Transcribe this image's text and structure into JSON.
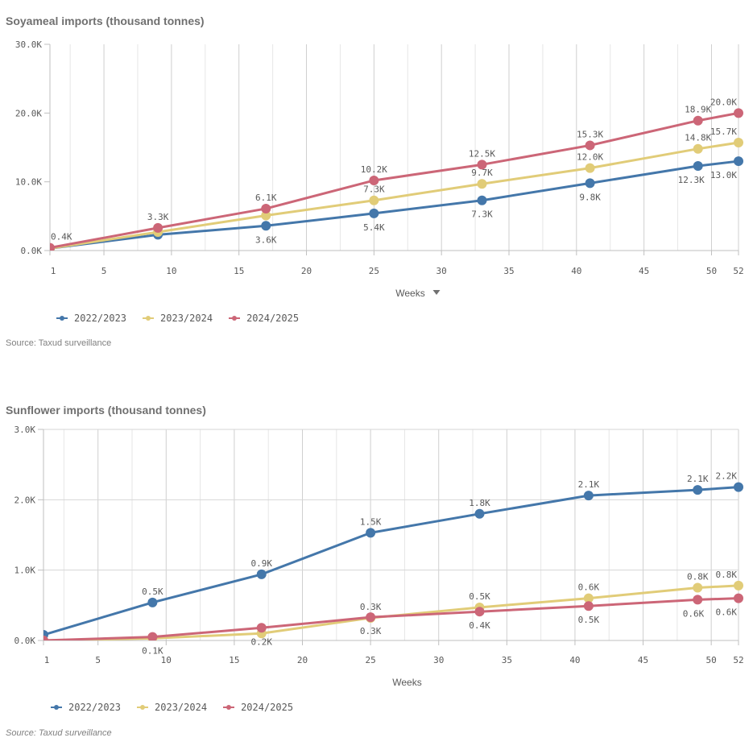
{
  "colors": {
    "series_2022_2023": "#4477aa",
    "series_2023_2024": "#e1cc78",
    "series_2024_2025": "#cc6677",
    "grid": "#d9d9d9",
    "axis": "#bfbfbf"
  },
  "chart_data": [
    {
      "type": "line",
      "title": "Soyameal imports (thousand tonnes)",
      "xlabel": "Weeks",
      "xlabel_has_dropdown": true,
      "ylabel": "",
      "x": [
        1,
        9,
        17,
        25,
        33,
        41,
        49,
        52
      ],
      "xlim": [
        1,
        52
      ],
      "x_ticks": [
        "1",
        "5",
        "10",
        "15",
        "20",
        "25",
        "30",
        "35",
        "40",
        "45",
        "50",
        "52"
      ],
      "x_tick_values": [
        1,
        5,
        10,
        15,
        20,
        25,
        30,
        35,
        40,
        45,
        50,
        52
      ],
      "ylim": [
        0,
        30000
      ],
      "y_ticks": [
        "0.0K",
        "10.0K",
        "20.0K",
        "30.0K"
      ],
      "y_tick_values": [
        0,
        10000,
        20000,
        30000
      ],
      "grid": "vertical",
      "legend_position": "bottom-left",
      "series": [
        {
          "name": "2022/2023",
          "values": [
            300,
            2300,
            3600,
            5400,
            7300,
            9800,
            12300,
            13000
          ],
          "labels": [
            "",
            "",
            "3.6K",
            "5.4K",
            "7.3K",
            "9.8K",
            "12.3K",
            "13.0K"
          ],
          "label_pos": "below"
        },
        {
          "name": "2023/2024",
          "values": [
            300,
            2700,
            5100,
            7300,
            9700,
            12000,
            14800,
            15700
          ],
          "labels": [
            "",
            "",
            "",
            "7.3K",
            "9.7K",
            "12.0K",
            "14.8K",
            "15.7K"
          ],
          "label_pos": "above"
        },
        {
          "name": "2024/2025",
          "values": [
            400,
            3300,
            6100,
            10200,
            12500,
            15300,
            18900,
            20000
          ],
          "labels": [
            "0.4K",
            "3.3K",
            "6.1K",
            "10.2K",
            "12.5K",
            "15.3K",
            "18.9K",
            "20.0K"
          ],
          "label_pos": "above"
        }
      ],
      "source": "Source: Taxud surveillance"
    },
    {
      "type": "line",
      "title": "Sunflower imports (thousand tonnes)",
      "xlabel": "Weeks",
      "xlabel_has_dropdown": false,
      "ylabel": "",
      "x": [
        1,
        9,
        17,
        25,
        33,
        41,
        49,
        52
      ],
      "xlim": [
        1,
        52
      ],
      "x_ticks": [
        "1",
        "5",
        "10",
        "15",
        "20",
        "25",
        "30",
        "35",
        "40",
        "45",
        "50",
        "52"
      ],
      "x_tick_values": [
        1,
        5,
        10,
        15,
        20,
        25,
        30,
        35,
        40,
        45,
        50,
        52
      ],
      "ylim": [
        0,
        3000
      ],
      "y_ticks": [
        "0.0K",
        "1.0K",
        "2.0K",
        "3.0K"
      ],
      "y_tick_values": [
        0,
        1000,
        2000,
        3000
      ],
      "grid": "both",
      "legend_position": "bottom-left",
      "series": [
        {
          "name": "2022/2023",
          "values": [
            80,
            540,
            940,
            1530,
            1800,
            2060,
            2140,
            2180
          ],
          "labels": [
            "",
            "0.5K",
            "0.9K",
            "1.5K",
            "1.8K",
            "2.1K",
            "2.1K",
            "2.2K"
          ],
          "label_pos": "above"
        },
        {
          "name": "2023/2024",
          "values": [
            0,
            30,
            100,
            320,
            470,
            600,
            750,
            780
          ],
          "labels": [
            "",
            "",
            "",
            "0.3K",
            "0.5K",
            "0.6K",
            "0.8K",
            "0.8K"
          ],
          "label_pos": "above"
        },
        {
          "name": "2024/2025",
          "values": [
            0,
            50,
            180,
            330,
            410,
            490,
            580,
            600
          ],
          "labels": [
            "",
            "0.1K",
            "0.2K",
            "0.3K",
            "0.4K",
            "0.5K",
            "0.6K",
            "0.6K"
          ],
          "label_pos": "below"
        }
      ],
      "source": "Source: Taxud surveillance"
    }
  ]
}
